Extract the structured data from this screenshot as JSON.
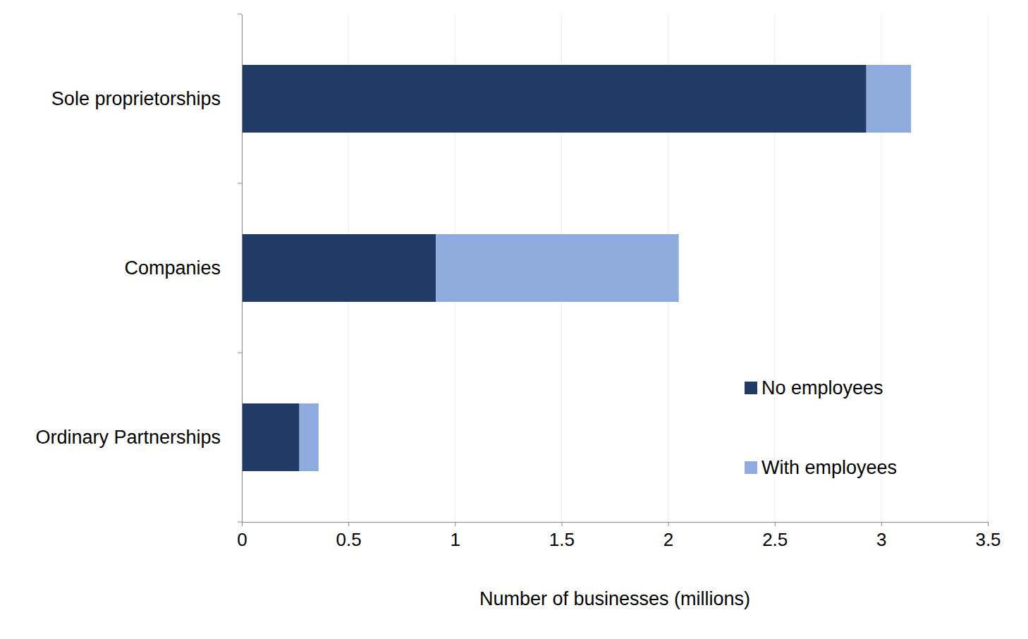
{
  "chart_data": {
    "type": "bar",
    "orientation": "horizontal",
    "stacked": true,
    "categories": [
      "Sole proprietorships",
      "Companies",
      "Ordinary Partnerships"
    ],
    "series": [
      {
        "name": "No employees",
        "color": "#213a66",
        "values": [
          2.93,
          0.91,
          0.27
        ]
      },
      {
        "name": "With employees",
        "color": "#8faadc",
        "values": [
          0.21,
          1.14,
          0.09
        ]
      }
    ],
    "x_label": "Number of businesses (millions)",
    "xlim": [
      0,
      3.5
    ],
    "xticks": [
      0,
      0.5,
      1,
      1.5,
      2,
      2.5,
      3,
      3.5
    ],
    "grid": true,
    "legend": "lower right"
  }
}
